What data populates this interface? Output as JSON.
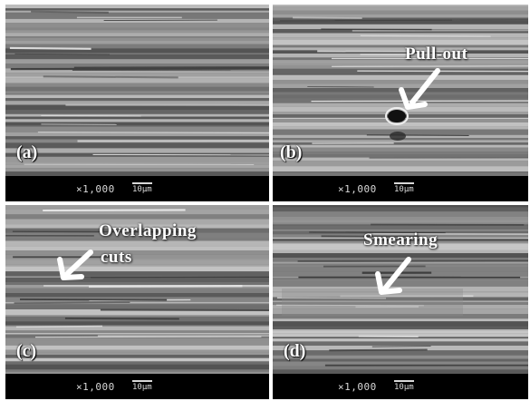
{
  "panels": [
    {
      "id": "a",
      "label": "(a)",
      "magnification": "×1,000",
      "scale": "10μm"
    },
    {
      "id": "b",
      "label": "(b)",
      "magnification": "×1,000",
      "scale": "10μm",
      "annotation": "Pull-out"
    },
    {
      "id": "c",
      "label": "(c)",
      "magnification": "×1,000",
      "scale": "10μm",
      "annotation_line1": "Overlapping",
      "annotation_line2": "cuts"
    },
    {
      "id": "d",
      "label": "(d)",
      "magnification": "×1,000",
      "scale": "10μm",
      "annotation": "Smearing"
    }
  ]
}
